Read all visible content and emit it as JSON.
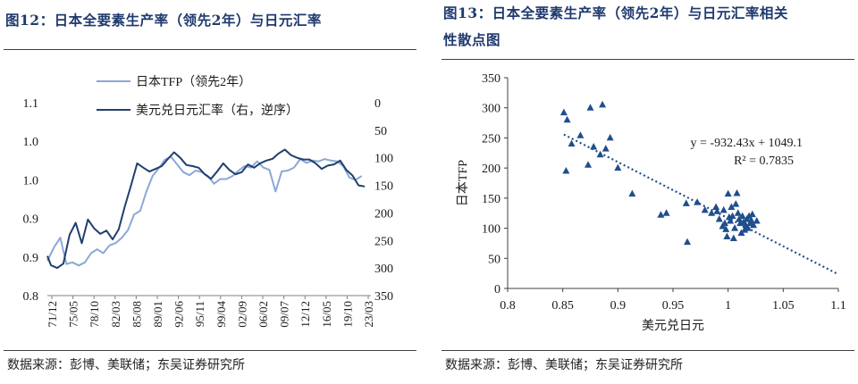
{
  "left_panel": {
    "title": "图12：日本全要素生产率（领先2年）与日元汇率",
    "source": "数据来源：彭博、美联储；东吴证券研究所"
  },
  "right_panel": {
    "title_line1": "图13：日本全要素生产率（领先2年）与日元汇率相关",
    "title_line2": "性散点图",
    "source": "数据来源：彭博、美联储；东吴证券研究所"
  },
  "colors": {
    "tfp_line": "#8aa8d8",
    "fx_line": "#1f3f6e",
    "scatter_marker": "#1f4e8c",
    "trendline": "#1f4e8c",
    "title": "#1f3a6e"
  },
  "chart_data": [
    {
      "type": "line",
      "x_tick_labels": [
        "71/12",
        "75/05",
        "78/10",
        "82/03",
        "85/08",
        "89/01",
        "92/06",
        "95/11",
        "99/04",
        "02/09",
        "06/02",
        "09/07",
        "12/12",
        "16/05",
        "19/10",
        "23/03"
      ],
      "x_range": [
        1971.9,
        2024.5
      ],
      "y_left": {
        "tick_labels": [
          "1.1",
          "1.0",
          "1.0",
          "0.9",
          "0.9",
          "0.8"
        ],
        "ticks": [
          1.1,
          1.05,
          1.0,
          0.95,
          0.9,
          0.85
        ],
        "range": [
          0.85,
          1.1
        ]
      },
      "y_right": {
        "tick_labels": [
          "0",
          "50",
          "100",
          "150",
          "200",
          "250",
          "300",
          "350"
        ],
        "ticks": [
          0,
          50,
          100,
          150,
          200,
          250,
          300,
          350
        ],
        "range": [
          0,
          350
        ],
        "inverted": true
      },
      "legend_position": "top-center",
      "series": [
        {
          "name": "日本TFP（领先2年）",
          "axis": "left",
          "color": "#8aa8d8",
          "x": [
            1971.9,
            1973.0,
            1974.0,
            1975.0,
            1976.0,
            1977.0,
            1978.0,
            1979.0,
            1980.0,
            1981.0,
            1982.0,
            1983.0,
            1984.0,
            1985.0,
            1986.0,
            1987.0,
            1988.0,
            1989.0,
            1990.0,
            1991.0,
            1992.0,
            1993.0,
            1994.0,
            1995.0,
            1996.0,
            1997.0,
            1998.0,
            1999.0,
            2000.0,
            2001.0,
            2002.0,
            2003.0,
            2004.0,
            2005.0,
            2006.0,
            2007.0,
            2008.0,
            2009.0,
            2010.0,
            2011.0,
            2012.0,
            2013.0,
            2014.0,
            2015.0,
            2016.0,
            2017.0,
            2018.0,
            2019.0,
            2020.0,
            2021.0,
            2022.0,
            2023.0
          ],
          "values": [
            0.895,
            0.913,
            0.925,
            0.891,
            0.893,
            0.889,
            0.893,
            0.905,
            0.91,
            0.905,
            0.915,
            0.918,
            0.925,
            0.935,
            0.955,
            0.96,
            0.985,
            1.005,
            1.015,
            1.026,
            1.03,
            1.02,
            1.01,
            1.006,
            1.012,
            1.01,
            1.005,
            0.995,
            1.001,
            1.001,
            1.005,
            1.012,
            1.018,
            1.016,
            1.024,
            1.016,
            1.013,
            0.985,
            1.011,
            1.012,
            1.016,
            1.027,
            1.022,
            1.025,
            1.024,
            1.027,
            1.025,
            1.024,
            1.018,
            1.003,
            1.0,
            1.005
          ]
        },
        {
          "name": "美元兑日元汇率（右，逆序）",
          "axis": "right",
          "color": "#1f3f6e",
          "x": [
            1971.9,
            1972.5,
            1973.5,
            1974.5,
            1975.5,
            1976.5,
            1977.5,
            1978.5,
            1979.5,
            1980.5,
            1981.5,
            1982.5,
            1983.5,
            1984.5,
            1985.5,
            1986.5,
            1987.5,
            1988.5,
            1989.5,
            1990.5,
            1991.5,
            1992.5,
            1993.5,
            1994.5,
            1995.5,
            1996.5,
            1997.5,
            1998.5,
            1999.5,
            2000.5,
            2001.5,
            2002.5,
            2003.5,
            2004.5,
            2005.5,
            2006.5,
            2007.5,
            2008.5,
            2009.5,
            2010.5,
            2011.5,
            2012.5,
            2013.5,
            2014.5,
            2015.5,
            2016.5,
            2017.5,
            2018.5,
            2019.5,
            2020.5,
            2021.5,
            2022.5,
            2023.5
          ],
          "values": [
            278,
            295,
            300,
            292,
            240,
            218,
            255,
            212,
            228,
            238,
            232,
            248,
            230,
            188,
            150,
            110,
            118,
            125,
            120,
            115,
            102,
            90,
            100,
            113,
            115,
            118,
            130,
            138,
            125,
            110,
            122,
            130,
            126,
            112,
            118,
            110,
            105,
            102,
            92,
            85,
            95,
            100,
            103,
            103,
            110,
            120,
            114,
            112,
            105,
            122,
            132,
            150,
            152
          ]
        }
      ]
    },
    {
      "type": "scatter",
      "x_label": "美元兑日元",
      "y_label": "日本TFP",
      "x_tick_labels": [
        "0.8",
        "0.85",
        "0.9",
        "0.95",
        "1",
        "1.05",
        "1.1"
      ],
      "y_tick_labels": [
        "0",
        "50",
        "100",
        "150",
        "200",
        "250",
        "300",
        "350"
      ],
      "x_range": [
        0.8,
        1.1
      ],
      "y_range": [
        0,
        350
      ],
      "trendline": {
        "slope": -932.43,
        "intercept": 1049.1,
        "x_start": 0.851,
        "x_end": 1.1,
        "style": "dotted"
      },
      "annotations": [
        "y = -932.43x + 1049.1",
        "R² = 0.7835"
      ],
      "points": [
        {
          "x": 0.851,
          "y": 292
        },
        {
          "x": 0.854,
          "y": 280
        },
        {
          "x": 0.853,
          "y": 195
        },
        {
          "x": 0.858,
          "y": 240
        },
        {
          "x": 0.866,
          "y": 254
        },
        {
          "x": 0.873,
          "y": 205
        },
        {
          "x": 0.875,
          "y": 300
        },
        {
          "x": 0.878,
          "y": 235
        },
        {
          "x": 0.884,
          "y": 222
        },
        {
          "x": 0.886,
          "y": 305
        },
        {
          "x": 0.889,
          "y": 232
        },
        {
          "x": 0.893,
          "y": 250
        },
        {
          "x": 0.9,
          "y": 200
        },
        {
          "x": 0.913,
          "y": 157
        },
        {
          "x": 0.939,
          "y": 122
        },
        {
          "x": 0.944,
          "y": 125
        },
        {
          "x": 0.962,
          "y": 141
        },
        {
          "x": 0.963,
          "y": 77
        },
        {
          "x": 0.972,
          "y": 143
        },
        {
          "x": 0.979,
          "y": 130
        },
        {
          "x": 0.985,
          "y": 125
        },
        {
          "x": 0.989,
          "y": 135
        },
        {
          "x": 0.99,
          "y": 128
        },
        {
          "x": 0.992,
          "y": 115
        },
        {
          "x": 0.995,
          "y": 103
        },
        {
          "x": 0.996,
          "y": 130
        },
        {
          "x": 0.997,
          "y": 108
        },
        {
          "x": 0.998,
          "y": 98
        },
        {
          "x": 0.999,
          "y": 86
        },
        {
          "x": 1.0,
          "y": 157
        },
        {
          "x": 1.001,
          "y": 118
        },
        {
          "x": 1.002,
          "y": 112
        },
        {
          "x": 1.003,
          "y": 135
        },
        {
          "x": 1.004,
          "y": 120
        },
        {
          "x": 1.005,
          "y": 83
        },
        {
          "x": 1.006,
          "y": 100
        },
        {
          "x": 1.007,
          "y": 140
        },
        {
          "x": 1.008,
          "y": 158
        },
        {
          "x": 1.009,
          "y": 125
        },
        {
          "x": 1.01,
          "y": 115
        },
        {
          "x": 1.011,
          "y": 108
        },
        {
          "x": 1.012,
          "y": 92
        },
        {
          "x": 1.013,
          "y": 120
        },
        {
          "x": 1.014,
          "y": 110
        },
        {
          "x": 1.015,
          "y": 97
        },
        {
          "x": 1.016,
          "y": 105
        },
        {
          "x": 1.017,
          "y": 115
        },
        {
          "x": 1.018,
          "y": 100
        },
        {
          "x": 1.019,
          "y": 120
        },
        {
          "x": 1.02,
          "y": 108
        },
        {
          "x": 1.021,
          "y": 113
        },
        {
          "x": 1.022,
          "y": 123
        },
        {
          "x": 1.023,
          "y": 105
        },
        {
          "x": 1.026,
          "y": 112
        }
      ]
    }
  ]
}
